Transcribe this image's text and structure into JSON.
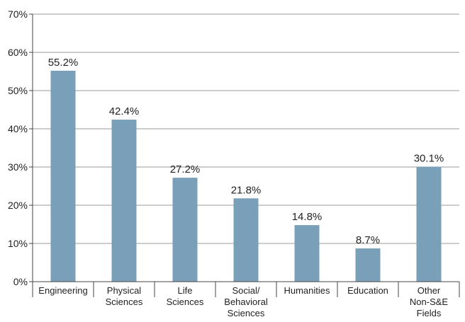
{
  "chart_data": {
    "type": "bar",
    "categories": [
      [
        "Engineering"
      ],
      [
        "Physical",
        "Sciences"
      ],
      [
        "Life",
        "Sciences"
      ],
      [
        "Social/",
        "Behavioral",
        "Sciences"
      ],
      [
        "Humanities"
      ],
      [
        "Education"
      ],
      [
        "Other",
        "Non-S&E",
        "Fields"
      ]
    ],
    "values": [
      55.2,
      42.4,
      27.2,
      21.8,
      14.8,
      8.7,
      30.1
    ],
    "data_labels": [
      "55.2%",
      "42.4%",
      "27.2%",
      "21.8%",
      "14.8%",
      "8.7%",
      "30.1%"
    ],
    "yticks": [
      0,
      10,
      20,
      30,
      40,
      50,
      60,
      70
    ],
    "ytick_labels": [
      "0%",
      "10%",
      "20%",
      "30%",
      "40%",
      "50%",
      "60%",
      "70%"
    ],
    "ylim": [
      0,
      70
    ],
    "grid": true,
    "legend": "none",
    "title": "",
    "xlabel": "",
    "ylabel": "",
    "colors": {
      "bar": "#7aa0b9",
      "grid": "#9a9a9a",
      "axis": "#444444",
      "text": "#222222"
    }
  }
}
